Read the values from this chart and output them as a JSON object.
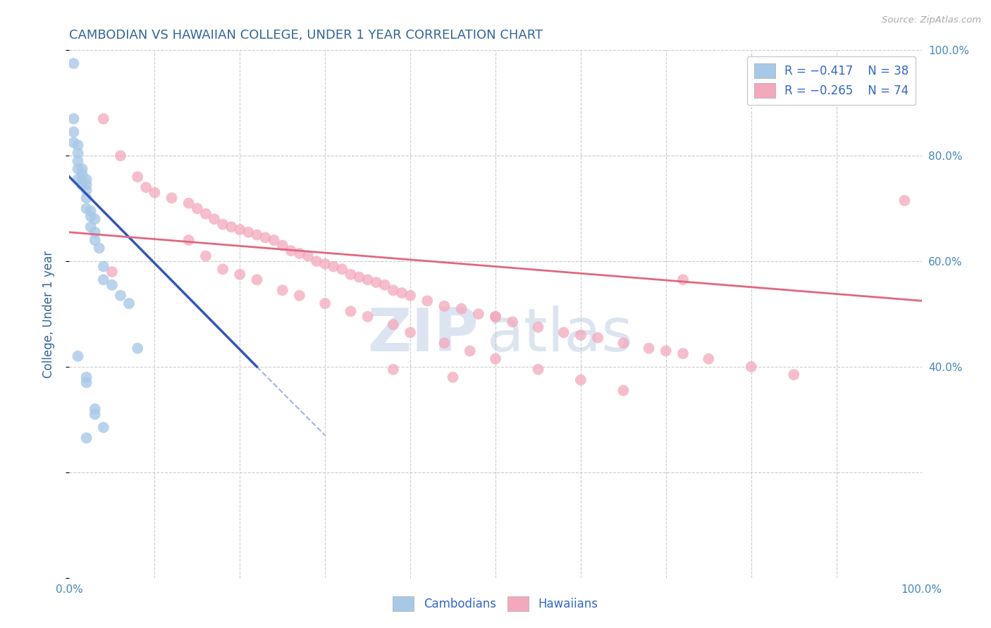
{
  "title": "CAMBODIAN VS HAWAIIAN COLLEGE, UNDER 1 YEAR CORRELATION CHART",
  "source": "Source: ZipAtlas.com",
  "ylabel": "College, Under 1 year",
  "watermark_zip": "ZIP",
  "watermark_atlas": "atlas",
  "legend_r1": "-0.417",
  "legend_n1": "38",
  "legend_r2": "-0.265",
  "legend_n2": "74",
  "xlim": [
    0.0,
    1.0
  ],
  "ylim": [
    0.0,
    1.0
  ],
  "color_cambodian": "#a8c8e8",
  "color_hawaiian": "#f4a8bc",
  "line_color_cambodian": "#3355bb",
  "line_color_hawaiian": "#e06880",
  "background_color": "#ffffff",
  "grid_color": "#cccccc",
  "title_color": "#336699",
  "source_color": "#aaaaaa",
  "legend_text_color": "#3366cc",
  "axis_label_color": "#336699",
  "tick_label_color": "#4488bb",
  "cambodian_x": [
    0.005,
    0.005,
    0.005,
    0.005,
    0.01,
    0.01,
    0.01,
    0.01,
    0.01,
    0.015,
    0.015,
    0.015,
    0.015,
    0.02,
    0.02,
    0.02,
    0.02,
    0.02,
    0.025,
    0.025,
    0.025,
    0.03,
    0.03,
    0.03,
    0.035,
    0.04,
    0.04,
    0.05,
    0.06,
    0.07,
    0.08,
    0.01,
    0.02,
    0.02,
    0.03,
    0.03,
    0.04,
    0.02
  ],
  "cambodian_y": [
    0.975,
    0.87,
    0.845,
    0.825,
    0.82,
    0.805,
    0.79,
    0.775,
    0.755,
    0.775,
    0.765,
    0.755,
    0.745,
    0.755,
    0.745,
    0.735,
    0.72,
    0.7,
    0.695,
    0.685,
    0.665,
    0.68,
    0.655,
    0.64,
    0.625,
    0.59,
    0.565,
    0.555,
    0.535,
    0.52,
    0.435,
    0.42,
    0.38,
    0.37,
    0.32,
    0.31,
    0.285,
    0.265
  ],
  "hawaiian_x": [
    0.04,
    0.06,
    0.08,
    0.09,
    0.1,
    0.12,
    0.14,
    0.15,
    0.16,
    0.17,
    0.18,
    0.19,
    0.2,
    0.21,
    0.22,
    0.23,
    0.24,
    0.25,
    0.26,
    0.27,
    0.28,
    0.29,
    0.3,
    0.31,
    0.32,
    0.33,
    0.34,
    0.35,
    0.36,
    0.37,
    0.38,
    0.39,
    0.4,
    0.42,
    0.44,
    0.46,
    0.48,
    0.5,
    0.52,
    0.55,
    0.58,
    0.6,
    0.62,
    0.65,
    0.68,
    0.7,
    0.72,
    0.75,
    0.8,
    0.85,
    0.14,
    0.16,
    0.18,
    0.2,
    0.22,
    0.25,
    0.27,
    0.3,
    0.33,
    0.35,
    0.38,
    0.4,
    0.44,
    0.47,
    0.5,
    0.55,
    0.6,
    0.65,
    0.98,
    0.72,
    0.05,
    0.38,
    0.45,
    0.5
  ],
  "hawaiian_y": [
    0.87,
    0.8,
    0.76,
    0.74,
    0.73,
    0.72,
    0.71,
    0.7,
    0.69,
    0.68,
    0.67,
    0.665,
    0.66,
    0.655,
    0.65,
    0.645,
    0.64,
    0.63,
    0.62,
    0.615,
    0.61,
    0.6,
    0.595,
    0.59,
    0.585,
    0.575,
    0.57,
    0.565,
    0.56,
    0.555,
    0.545,
    0.54,
    0.535,
    0.525,
    0.515,
    0.51,
    0.5,
    0.495,
    0.485,
    0.475,
    0.465,
    0.46,
    0.455,
    0.445,
    0.435,
    0.43,
    0.425,
    0.415,
    0.4,
    0.385,
    0.64,
    0.61,
    0.585,
    0.575,
    0.565,
    0.545,
    0.535,
    0.52,
    0.505,
    0.495,
    0.48,
    0.465,
    0.445,
    0.43,
    0.415,
    0.395,
    0.375,
    0.355,
    0.715,
    0.565,
    0.58,
    0.395,
    0.38,
    0.495
  ],
  "cam_line_x0": 0.0,
  "cam_line_y0": 0.76,
  "cam_line_x1": 0.22,
  "cam_line_y1": 0.4,
  "cam_line_dash_x1": 0.3,
  "cam_line_dash_y1": 0.27,
  "haw_line_x0": 0.0,
  "haw_line_y0": 0.655,
  "haw_line_x1": 1.0,
  "haw_line_y1": 0.525
}
